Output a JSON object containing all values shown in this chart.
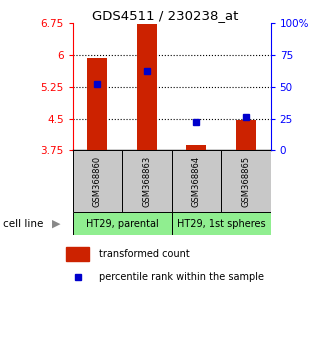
{
  "title": "GDS4511 / 230238_at",
  "samples": [
    "GSM368860",
    "GSM368863",
    "GSM368864",
    "GSM368865"
  ],
  "red_values": [
    5.93,
    6.72,
    3.88,
    4.47
  ],
  "blue_values": [
    5.32,
    5.62,
    4.43,
    4.54
  ],
  "y_min": 3.75,
  "y_max": 6.75,
  "y_ticks_left": [
    3.75,
    4.5,
    5.25,
    6.0,
    6.75
  ],
  "y_ticks_right": [
    0,
    25,
    50,
    75,
    100
  ],
  "y_tick_labels_left": [
    "3.75",
    "4.5",
    "5.25",
    "6",
    "6.75"
  ],
  "y_tick_labels_right": [
    "0",
    "25",
    "50",
    "75",
    "100%"
  ],
  "dotted_lines": [
    4.5,
    5.25,
    6.0
  ],
  "cell_line_groups": [
    {
      "label": "HT29, parental",
      "samples": [
        0,
        1
      ],
      "color": "#90EE90"
    },
    {
      "label": "HT29, 1st spheres",
      "samples": [
        2,
        3
      ],
      "color": "#90EE90"
    }
  ],
  "bar_color": "#CC2200",
  "dot_color": "#0000CC",
  "base_value": 3.75,
  "sample_box_color": "#C8C8C8",
  "legend_red_label": "transformed count",
  "legend_blue_label": "percentile rank within the sample"
}
